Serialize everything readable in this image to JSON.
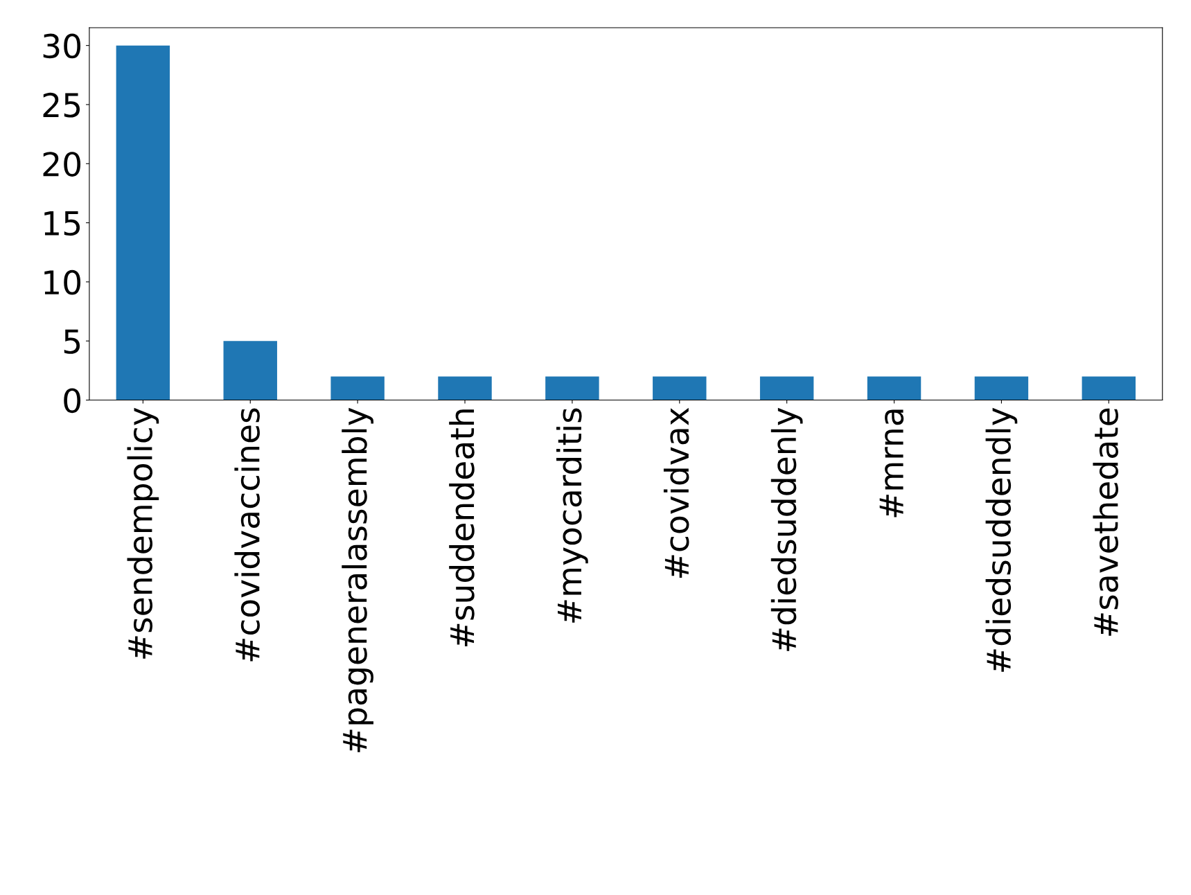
{
  "chart_data": {
    "type": "bar",
    "categories": [
      "#sendempolicy",
      "#covidvaccines",
      "#pageneralassembly",
      "#suddendeath",
      "#myocarditis",
      "#covidvax",
      "#diedsuddenly",
      "#mrna",
      "#diedsuddendly",
      "#savethedate"
    ],
    "values": [
      30,
      5,
      2,
      2,
      2,
      2,
      2,
      2,
      2,
      2
    ],
    "color": "#1f77b4",
    "ylim": [
      0,
      31.5
    ],
    "yticks": [
      0,
      5,
      10,
      15,
      20,
      25,
      30
    ],
    "grid": false,
    "legend": false
  }
}
